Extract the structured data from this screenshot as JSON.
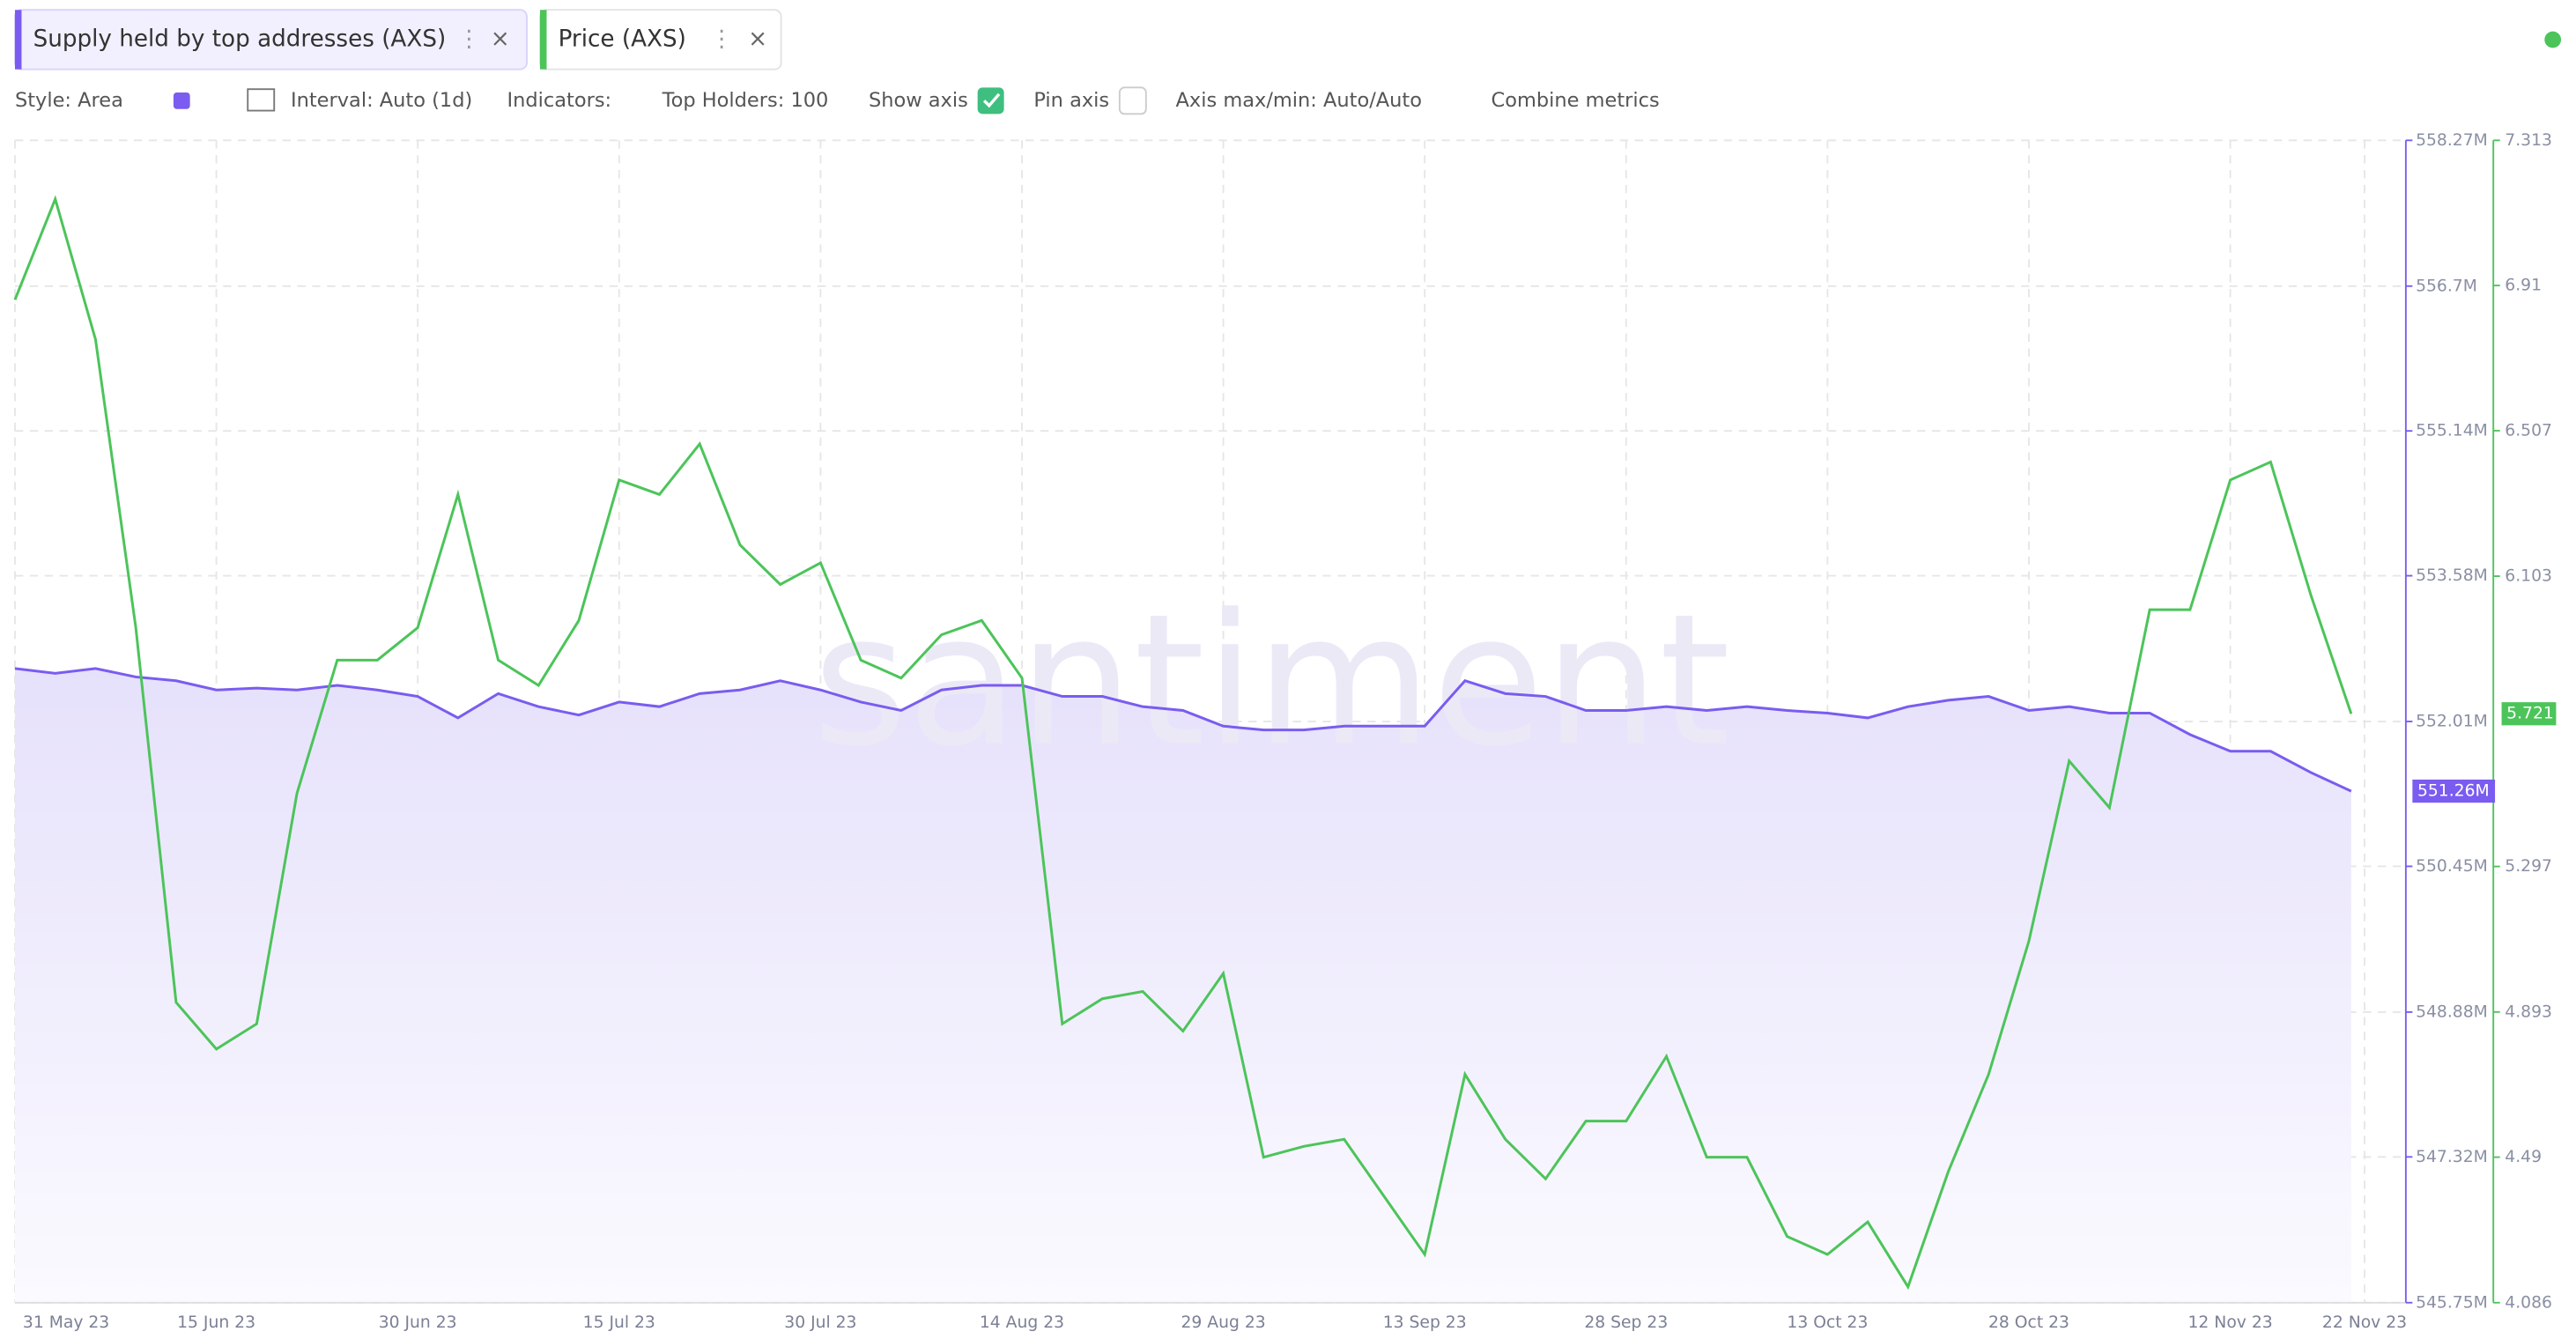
{
  "tabs": {
    "close_icon": "×",
    "menu_icon": "⋮"
  },
  "toolbar": {
    "style": "Style: Area",
    "interval": "Interval: Auto (1d)",
    "indicators": "Indicators:",
    "top_holders": "Top Holders: 100",
    "show_axis": "Show axis",
    "pin_axis": "Pin axis",
    "axis_maxmin": "Axis max/min: Auto/Auto",
    "combine": "Combine metrics"
  },
  "chart_data": {
    "type": "line",
    "watermark": "santiment",
    "grid": true,
    "x": [
      "2023-05-31",
      "2023-06-03",
      "2023-06-06",
      "2023-06-09",
      "2023-06-12",
      "2023-06-15",
      "2023-06-18",
      "2023-06-21",
      "2023-06-24",
      "2023-06-27",
      "2023-06-30",
      "2023-07-03",
      "2023-07-06",
      "2023-07-09",
      "2023-07-12",
      "2023-07-15",
      "2023-07-18",
      "2023-07-21",
      "2023-07-24",
      "2023-07-27",
      "2023-07-30",
      "2023-08-02",
      "2023-08-05",
      "2023-08-08",
      "2023-08-11",
      "2023-08-14",
      "2023-08-17",
      "2023-08-20",
      "2023-08-23",
      "2023-08-26",
      "2023-08-29",
      "2023-09-01",
      "2023-09-04",
      "2023-09-07",
      "2023-09-10",
      "2023-09-13",
      "2023-09-16",
      "2023-09-19",
      "2023-09-22",
      "2023-09-25",
      "2023-09-28",
      "2023-10-01",
      "2023-10-04",
      "2023-10-07",
      "2023-10-10",
      "2023-10-13",
      "2023-10-16",
      "2023-10-19",
      "2023-10-22",
      "2023-10-25",
      "2023-10-28",
      "2023-10-31",
      "2023-11-03",
      "2023-11-06",
      "2023-11-09",
      "2023-11-12",
      "2023-11-15",
      "2023-11-18",
      "2023-11-21"
    ],
    "xlim": [
      "2023-05-31",
      "2023-11-22"
    ],
    "xticks": [
      {
        "value": "2023-05-31",
        "label": "31 May 23"
      },
      {
        "value": "2023-06-15",
        "label": "15 Jun 23"
      },
      {
        "value": "2023-06-30",
        "label": "30 Jun 23"
      },
      {
        "value": "2023-07-15",
        "label": "15 Jul 23"
      },
      {
        "value": "2023-07-30",
        "label": "30 Jul 23"
      },
      {
        "value": "2023-08-14",
        "label": "14 Aug 23"
      },
      {
        "value": "2023-08-29",
        "label": "29 Aug 23"
      },
      {
        "value": "2023-09-13",
        "label": "13 Sep 23"
      },
      {
        "value": "2023-09-28",
        "label": "28 Sep 23"
      },
      {
        "value": "2023-10-13",
        "label": "13 Oct 23"
      },
      {
        "value": "2023-10-28",
        "label": "28 Oct 23"
      },
      {
        "value": "2023-11-12",
        "label": "12 Nov 23"
      },
      {
        "value": "2023-11-22",
        "label": "22 Nov 23"
      }
    ],
    "ylim": [
      545.75,
      558.27
    ],
    "yticks": [
      {
        "value": 545.75,
        "label": "545.75M"
      },
      {
        "value": 547.32,
        "label": "547.32M"
      },
      {
        "value": 548.88,
        "label": "548.88M"
      },
      {
        "value": 550.45,
        "label": "550.45M"
      },
      {
        "value": 552.01,
        "label": "552.01M"
      },
      {
        "value": 553.58,
        "label": "553.58M"
      },
      {
        "value": 555.14,
        "label": "555.14M"
      },
      {
        "value": 556.7,
        "label": "556.7M"
      },
      {
        "value": 558.27,
        "label": "558.27M"
      }
    ],
    "y2lim": [
      4.086,
      7.313
    ],
    "y2ticks": [
      4.086,
      4.49,
      4.893,
      5.297,
      6.103,
      6.507,
      6.91,
      7.313
    ],
    "series": [
      {
        "name": "Supply held by top addresses (AXS)",
        "color": "#7a5cf0",
        "area": true,
        "last_label": "551.26M",
        "values": [
          552.58,
          552.53,
          552.58,
          552.49,
          552.45,
          552.35,
          552.37,
          552.35,
          552.4,
          552.35,
          552.28,
          552.05,
          552.31,
          552.17,
          552.08,
          552.22,
          552.17,
          552.31,
          552.35,
          552.45,
          552.35,
          552.22,
          552.13,
          552.35,
          552.4,
          552.4,
          552.28,
          552.28,
          552.17,
          552.13,
          551.96,
          551.92,
          551.92,
          551.96,
          551.96,
          551.96,
          552.45,
          552.31,
          552.28,
          552.13,
          552.13,
          552.17,
          552.13,
          552.17,
          552.13,
          552.1,
          552.05,
          552.17,
          552.24,
          552.28,
          552.13,
          552.17,
          552.1,
          552.1,
          551.87,
          551.69,
          551.69,
          551.46,
          551.26
        ]
      },
      {
        "name": "Price (AXS)",
        "color": "#4cc45a",
        "axis": "y2",
        "last_label": "5.721",
        "values": [
          6.87,
          7.15,
          6.76,
          5.96,
          4.92,
          4.79,
          4.86,
          5.5,
          5.87,
          5.87,
          5.96,
          6.33,
          5.87,
          5.8,
          5.98,
          6.37,
          6.33,
          6.47,
          6.19,
          6.08,
          6.14,
          5.87,
          5.82,
          5.94,
          5.98,
          5.82,
          4.86,
          4.93,
          4.95,
          4.84,
          5.0,
          4.49,
          4.52,
          4.54,
          4.38,
          4.22,
          4.72,
          4.54,
          4.43,
          4.59,
          4.59,
          4.77,
          4.49,
          4.49,
          4.27,
          4.22,
          4.31,
          4.13,
          4.45,
          4.72,
          5.09,
          5.59,
          5.46,
          6.01,
          6.01,
          6.37,
          6.42,
          6.05,
          5.721
        ]
      }
    ]
  }
}
